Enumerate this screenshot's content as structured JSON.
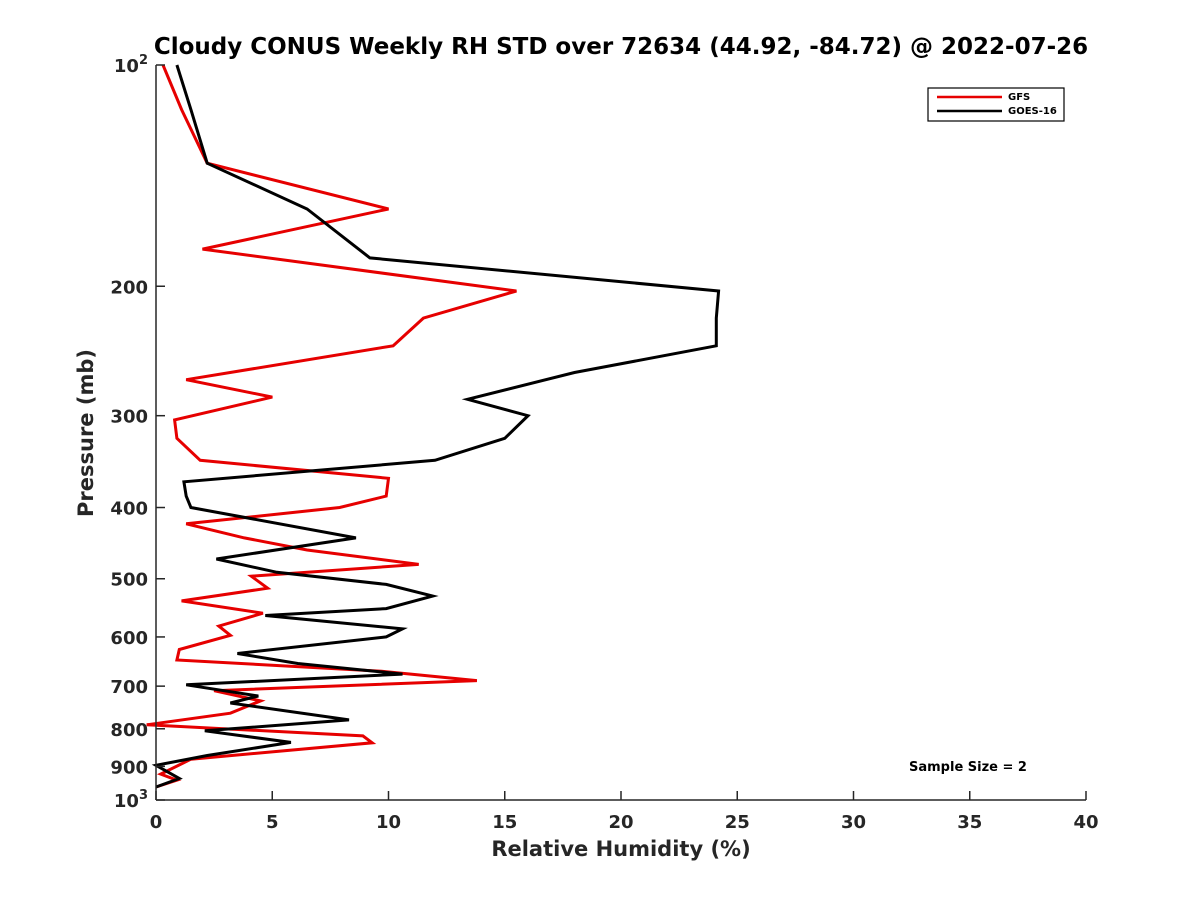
{
  "chart_data": {
    "type": "line",
    "title": "Cloudy CONUS Weekly RH STD over 72634 (44.92, -84.72) @ 2022-07-26",
    "xlabel": "Relative Humidity (%)",
    "ylabel": "Pressure (mb)",
    "xlim": [
      0,
      40
    ],
    "ylim": [
      100,
      1000
    ],
    "y_scale": "log",
    "y_reversed": true,
    "x_ticks": [
      0,
      5,
      10,
      15,
      20,
      25,
      30,
      35,
      40
    ],
    "x_tick_labels": [
      "0",
      "5",
      "10",
      "15",
      "20",
      "25",
      "30",
      "35",
      "40"
    ],
    "y_ticks": [
      100,
      200,
      300,
      400,
      500,
      600,
      700,
      800,
      900,
      1000
    ],
    "y_tick_labels": [
      {
        "base": "10",
        "exp": "2"
      },
      {
        "base": "200"
      },
      {
        "base": "300"
      },
      {
        "base": "400"
      },
      {
        "base": "500"
      },
      {
        "base": "600"
      },
      {
        "base": "700"
      },
      {
        "base": "800"
      },
      {
        "base": "900"
      },
      {
        "base": "10",
        "exp": "3"
      }
    ],
    "grid": false,
    "legend_position": "top-right",
    "annotation": "Sample Size = 2",
    "series": [
      {
        "name": "GFS",
        "color": "#e60000",
        "points": [
          [
            0.3,
            100
          ],
          [
            1.1,
            115
          ],
          [
            2.2,
            136
          ],
          [
            10.0,
            157
          ],
          [
            2.0,
            178
          ],
          [
            15.5,
            203
          ],
          [
            11.5,
            221
          ],
          [
            10.2,
            241
          ],
          [
            1.3,
            268
          ],
          [
            5.0,
            283
          ],
          [
            0.8,
            304
          ],
          [
            0.9,
            322
          ],
          [
            1.9,
            345
          ],
          [
            10.0,
            365
          ],
          [
            9.9,
            386
          ],
          [
            7.9,
            400
          ],
          [
            1.3,
            421
          ],
          [
            3.8,
            440
          ],
          [
            6.5,
            457
          ],
          [
            11.3,
            478
          ],
          [
            4.1,
            496
          ],
          [
            4.8,
            515
          ],
          [
            1.1,
            536
          ],
          [
            4.6,
            557
          ],
          [
            2.7,
            580
          ],
          [
            3.2,
            597
          ],
          [
            1.0,
            624
          ],
          [
            0.9,
            645
          ],
          [
            9.7,
            668
          ],
          [
            13.8,
            688
          ],
          [
            2.5,
            710
          ],
          [
            4.5,
            733
          ],
          [
            3.2,
            762
          ],
          [
            -0.4,
            790
          ],
          [
            8.9,
            818
          ],
          [
            9.3,
            836
          ],
          [
            1.5,
            880
          ],
          [
            0.2,
            922
          ],
          [
            0.9,
            940
          ],
          [
            0.0,
            960
          ]
        ]
      },
      {
        "name": "GOES-16",
        "color": "#000000",
        "points": [
          [
            0.9,
            100
          ],
          [
            1.5,
            115
          ],
          [
            2.2,
            136
          ],
          [
            6.5,
            157
          ],
          [
            9.2,
            183
          ],
          [
            24.2,
            203
          ],
          [
            24.1,
            221
          ],
          [
            24.1,
            241
          ],
          [
            18.0,
            262
          ],
          [
            13.4,
            285
          ],
          [
            16.0,
            300
          ],
          [
            15.0,
            322
          ],
          [
            12.0,
            345
          ],
          [
            1.2,
            369
          ],
          [
            1.3,
            386
          ],
          [
            1.5,
            400
          ],
          [
            8.6,
            440
          ],
          [
            2.6,
            470
          ],
          [
            5.2,
            490
          ],
          [
            9.9,
            509
          ],
          [
            11.9,
            528
          ],
          [
            9.9,
            549
          ],
          [
            4.7,
            561
          ],
          [
            10.6,
            585
          ],
          [
            9.9,
            600
          ],
          [
            3.5,
            632
          ],
          [
            6.1,
            652
          ],
          [
            10.6,
            674
          ],
          [
            1.3,
            697
          ],
          [
            4.4,
            722
          ],
          [
            3.2,
            738
          ],
          [
            8.3,
            778
          ],
          [
            2.1,
            805
          ],
          [
            5.8,
            835
          ],
          [
            2.2,
            870
          ],
          [
            0.0,
            897
          ],
          [
            1.0,
            935
          ],
          [
            0.0,
            960
          ]
        ]
      }
    ]
  }
}
